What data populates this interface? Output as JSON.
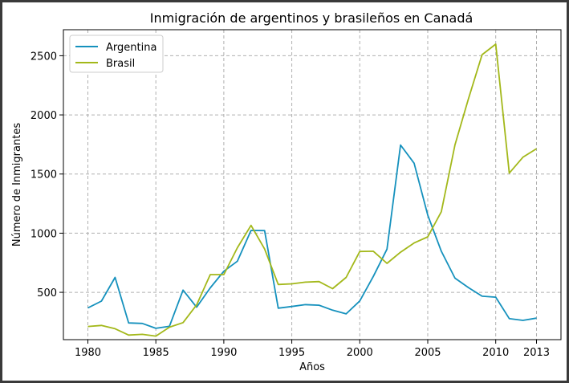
{
  "chart_data": {
    "type": "line",
    "title": "Inmigración de argentinos y brasileños en Canadá",
    "xlabel": "Años",
    "ylabel": "Número de Inmigrantes",
    "xlim": [
      1978.2,
      2014.8
    ],
    "ylim": [
      100,
      2720
    ],
    "xticks": [
      1980,
      1985,
      1990,
      1995,
      2000,
      2005,
      2010,
      2013
    ],
    "yticks": [
      500,
      1000,
      1500,
      2000,
      2500
    ],
    "grid": true,
    "legend_position": "top-left",
    "x": [
      1980,
      1981,
      1982,
      1983,
      1984,
      1985,
      1986,
      1987,
      1988,
      1989,
      1990,
      1991,
      1992,
      1993,
      1994,
      1995,
      1996,
      1997,
      1998,
      1999,
      2000,
      2001,
      2002,
      2003,
      2004,
      2005,
      2006,
      2007,
      2008,
      2009,
      2010,
      2011,
      2012,
      2013
    ],
    "series": [
      {
        "name": "Argentina",
        "color": "#1591bd",
        "values": [
          368,
          426,
          626,
          241,
          237,
          196,
          213,
          519,
          374,
          538,
          678,
          763,
          1023,
          1022,
          366,
          380,
          396,
          391,
          349,
          318,
          427,
          635,
          865,
          1745,
          1591,
          1153,
          847,
          620,
          540,
          467,
          459,
          278,
          263,
          282
        ]
      },
      {
        "name": "Brasil",
        "color": "#a3b81a",
        "values": [
          211,
          220,
          192,
          139,
          145,
          130,
          205,
          244,
          394,
          650,
          650,
          877,
          1066,
          866,
          566,
          572,
          586,
          591,
          531,
          626,
          845,
          847,
          745,
          839,
          917,
          969,
          1181,
          1746,
          2138,
          2509,
          2598,
          1508,
          1642,
          1714
        ]
      }
    ]
  }
}
